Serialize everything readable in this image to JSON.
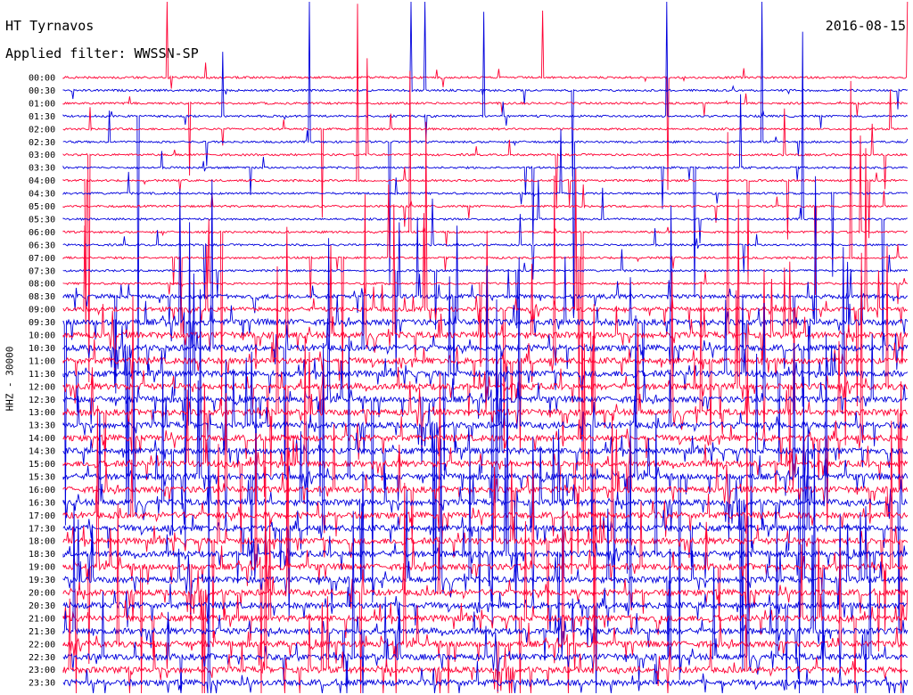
{
  "header": {
    "station": "HT Tyrnavos",
    "date": "2016-08-15",
    "filter": "Applied filter: WWSSN-SP"
  },
  "colors": {
    "trace_a": "#ff0033",
    "trace_b": "#0000dd",
    "background": "#ffffff"
  },
  "chart_data": {
    "type": "line",
    "title": "HT Tyrnavos",
    "subtitle": "Applied filter: WWSSN-SP",
    "ylabel": "HHZ - 30000",
    "y_ticks": [
      "00:00",
      "00:30",
      "01:00",
      "01:30",
      "02:00",
      "02:30",
      "03:00",
      "03:30",
      "04:00",
      "04:30",
      "05:00",
      "05:30",
      "06:00",
      "06:30",
      "07:00",
      "07:30",
      "08:00",
      "08:30",
      "09:00",
      "09:30",
      "10:00",
      "10:30",
      "11:00",
      "11:30",
      "12:00",
      "12:30",
      "13:00",
      "13:30",
      "14:00",
      "14:30",
      "15:00",
      "15:30",
      "16:00",
      "16:30",
      "17:00",
      "17:30",
      "18:00",
      "18:30",
      "19:00",
      "19:30",
      "20:00",
      "20:30",
      "21:00",
      "21:30",
      "22:00",
      "22:30",
      "23:00",
      "23:30"
    ],
    "series": [
      {
        "color": "#ff0033"
      },
      {
        "color": "#0000dd"
      }
    ],
    "grid": false,
    "legend": "none"
  }
}
